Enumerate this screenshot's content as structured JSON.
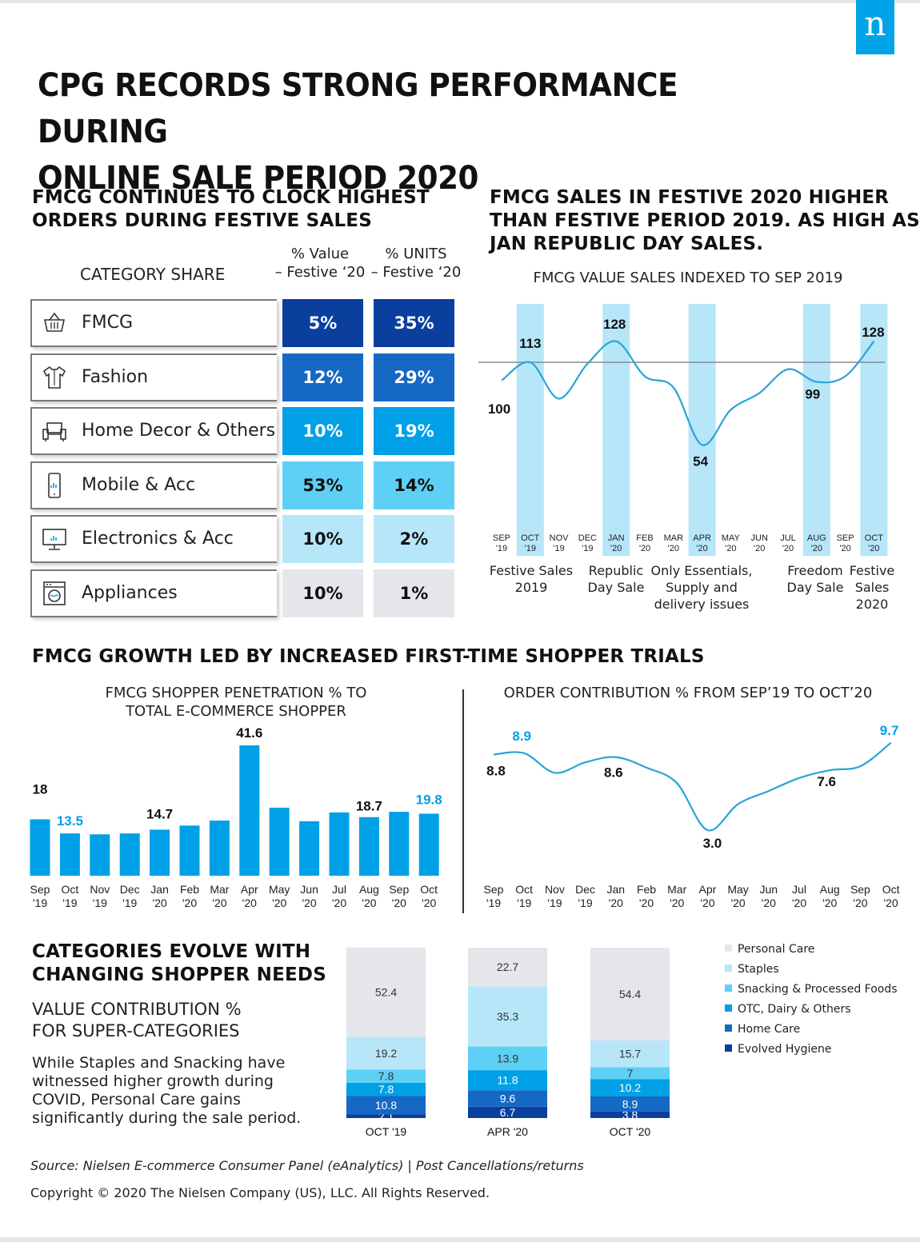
{
  "logo_letter": "n",
  "title_line1": "CPG RECORDS STRONG PERFORMANCE DURING",
  "title_line2": "ONLINE SALE PERIOD 2020",
  "section1": {
    "title_line1": "FMCG CONTINUES TO CLOCK HIGHEST",
    "title_line2": "ORDERS DURING FESTIVE SALES",
    "category_share_label": "CATEGORY SHARE",
    "col1_line1": "% Value",
    "col1_line2": "– Festive ‘20",
    "col2_line1": "% UNITS",
    "col2_line2": "– Festive ‘20"
  },
  "section2": {
    "title_line1": "FMCG SALES IN FESTIVE 2020 HIGHER",
    "title_line2": "THAN FESTIVE PERIOD 2019. AS HIGH AS",
    "title_line3": "JAN REPUBLIC DAY SALES.",
    "chart_title": "FMCG VALUE SALES INDEXED TO SEP 2019",
    "captions": [
      {
        "l1": "Festive Sales",
        "l2": "2019",
        "l3": ""
      },
      {
        "l1": "Republic",
        "l2": "Day Sale",
        "l3": ""
      },
      {
        "l1": "Only Essentials,",
        "l2": "Supply and",
        "l3": "delivery issues"
      },
      {
        "l1": "Freedom",
        "l2": "Day Sale",
        "l3": ""
      },
      {
        "l1": "Festive",
        "l2": "Sales",
        "l3": "2020"
      }
    ]
  },
  "section3": {
    "title": "FMCG GROWTH LED BY INCREASED FIRST-TIME SHOPPER TRIALS",
    "left_title_line1": "FMCG SHOPPER PENETRATION % TO",
    "left_title_line2": "TOTAL E-COMMERCE SHOPPER",
    "right_title": "ORDER CONTRIBUTION % FROM SEP’19 TO OCT’20"
  },
  "section4": {
    "title_line1": "CATEGORIES EVOLVE WITH",
    "title_line2": "CHANGING SHOPPER NEEDS",
    "subtitle_line1": "VALUE CONTRIBUTION %",
    "subtitle_line2": "FOR SUPER-CATEGORIES",
    "body": "While Staples and Snacking have witnessed higher growth during COVID, Personal Care gains significantly during the sale period."
  },
  "source": "Source: Nielsen E-commerce Consumer Panel (eAnalytics) | Post Cancellations/returns",
  "copyright": "Copyright © 2020 The Nielsen Company (US), LLC. All Rights Reserved.",
  "colors": {
    "dark_blue": "#0a3f9e",
    "mid_blue": "#1668c5",
    "bright_blue": "#00a0e6",
    "light_blue": "#5fd0f5",
    "pale_blue": "#b6e6f8",
    "grey": "#e4e6ea",
    "line_blue": "#2aa3d8"
  },
  "chart_data": [
    {
      "type": "table",
      "columns": [
        "% Value – Festive ‘20",
        "% UNITS – Festive ‘20"
      ],
      "rows": [
        {
          "category": "FMCG",
          "icon": "basket-icon",
          "value": "5%",
          "units": "35%"
        },
        {
          "category": "Fashion",
          "icon": "shirt-icon",
          "value": "12%",
          "units": "29%"
        },
        {
          "category": "Home Decor & Others",
          "icon": "sofa-icon",
          "value": "10%",
          "units": "19%"
        },
        {
          "category": "Mobile & Acc",
          "icon": "mobile-icon",
          "value": "53%",
          "units": "14%"
        },
        {
          "category": "Electronics & Acc",
          "icon": "monitor-icon",
          "value": "10%",
          "units": "2%"
        },
        {
          "category": "Appliances",
          "icon": "washing-machine-icon",
          "value": "10%",
          "units": "1%"
        }
      ]
    },
    {
      "type": "line",
      "title": "FMCG VALUE SALES INDEXED TO SEP 2019",
      "categories": [
        "SEP '19",
        "OCT '19",
        "NOV '19",
        "DEC '19",
        "JAN '20",
        "FEB '20",
        "MAR '20",
        "APR '20",
        "MAY '20",
        "JUN '20",
        "JUL '20",
        "AUG '20",
        "SEP '20",
        "OCT '20"
      ],
      "values": [
        100,
        113,
        87,
        112,
        128,
        103,
        95,
        54,
        79,
        91,
        108,
        99,
        103,
        128
      ],
      "reference_line": 113,
      "labels": [
        {
          "index": 0,
          "text": "100"
        },
        {
          "index": 1,
          "text": "113"
        },
        {
          "index": 4,
          "text": "128"
        },
        {
          "index": 7,
          "text": "54"
        },
        {
          "index": 11,
          "text": "99"
        },
        {
          "index": 13,
          "text": "128"
        }
      ],
      "highlighted": [
        "OCT '19",
        "JAN '20",
        "APR '20",
        "AUG '20",
        "OCT '20"
      ]
    },
    {
      "type": "bar",
      "title": "FMCG SHOPPER PENETRATION % TO TOTAL E-COMMERCE SHOPPER",
      "categories": [
        "Sep '19",
        "Oct '19",
        "Nov '19",
        "Dec '19",
        "Jan '20",
        "Feb '20",
        "Mar '20",
        "Apr '20",
        "May '20",
        "Jun '20",
        "Jul '20",
        "Aug '20",
        "Sep '20",
        "Oct '20"
      ],
      "values": [
        18,
        13.5,
        13.2,
        13.5,
        14.7,
        16,
        17.6,
        41.6,
        21.7,
        17.4,
        20.2,
        18.7,
        20.4,
        19.8
      ],
      "labels": [
        {
          "index": 0,
          "text": "18",
          "color": "#111111"
        },
        {
          "index": 1,
          "text": "13.5",
          "color": "#00a0e6"
        },
        {
          "index": 4,
          "text": "14.7",
          "color": "#111111"
        },
        {
          "index": 7,
          "text": "41.6",
          "color": "#111111"
        },
        {
          "index": 11,
          "text": "18.7",
          "color": "#111111"
        },
        {
          "index": 13,
          "text": "19.8",
          "color": "#00a0e6"
        }
      ],
      "ylim": [
        0,
        42
      ]
    },
    {
      "type": "line",
      "title": "ORDER CONTRIBUTION % FROM SEP’19 TO OCT’20",
      "categories": [
        "Sep '19",
        "Oct '19",
        "Nov '19",
        "Dec '19",
        "Jan '20",
        "Feb '20",
        "Mar '20",
        "Apr '20",
        "May '20",
        "Jun '20",
        "Jul '20",
        "Aug '20",
        "Sep '20",
        "Oct '20"
      ],
      "values": [
        8.8,
        8.9,
        7.4,
        8.2,
        8.6,
        7.8,
        6.6,
        3.0,
        5.0,
        6.0,
        7.0,
        7.6,
        7.9,
        9.7
      ],
      "labels": [
        {
          "index": 0,
          "text": "8.8",
          "color": "#111111"
        },
        {
          "index": 1,
          "text": "8.9",
          "color": "#00a0e6"
        },
        {
          "index": 4,
          "text": "8.6",
          "color": "#111111"
        },
        {
          "index": 7,
          "text": "3.0",
          "color": "#111111"
        },
        {
          "index": 11,
          "text": "7.6",
          "color": "#111111"
        },
        {
          "index": 13,
          "text": "9.7",
          "color": "#00a0e6"
        }
      ]
    },
    {
      "type": "bar",
      "stacked": true,
      "title": "VALUE CONTRIBUTION % FOR SUPER-CATEGORIES",
      "categories": [
        "OCT '19",
        "APR '20",
        "OCT '20"
      ],
      "series": [
        {
          "name": "Evolved Hygiene",
          "color": "#0a3f9e",
          "values": [
            2.1,
            6.7,
            3.8
          ]
        },
        {
          "name": "Home Care",
          "color": "#1668c5",
          "values": [
            10.8,
            9.6,
            8.9
          ]
        },
        {
          "name": "OTC, Dairy & Others",
          "color": "#00a0e6",
          "values": [
            7.8,
            11.8,
            10.2
          ]
        },
        {
          "name": "Snacking & Processed Foods",
          "color": "#5fd0f5",
          "values": [
            7.8,
            13.9,
            7
          ]
        },
        {
          "name": "Staples",
          "color": "#b6e6f8",
          "values": [
            19.2,
            35.3,
            15.7
          ]
        },
        {
          "name": "Personal Care",
          "color": "#e4e6ea",
          "values": [
            52.4,
            22.7,
            54.4
          ]
        }
      ],
      "legend_order": [
        "Personal Care",
        "Staples",
        "Snacking & Processed Foods",
        "OTC, Dairy & Others",
        "Home Care",
        "Evolved Hygiene"
      ]
    }
  ]
}
